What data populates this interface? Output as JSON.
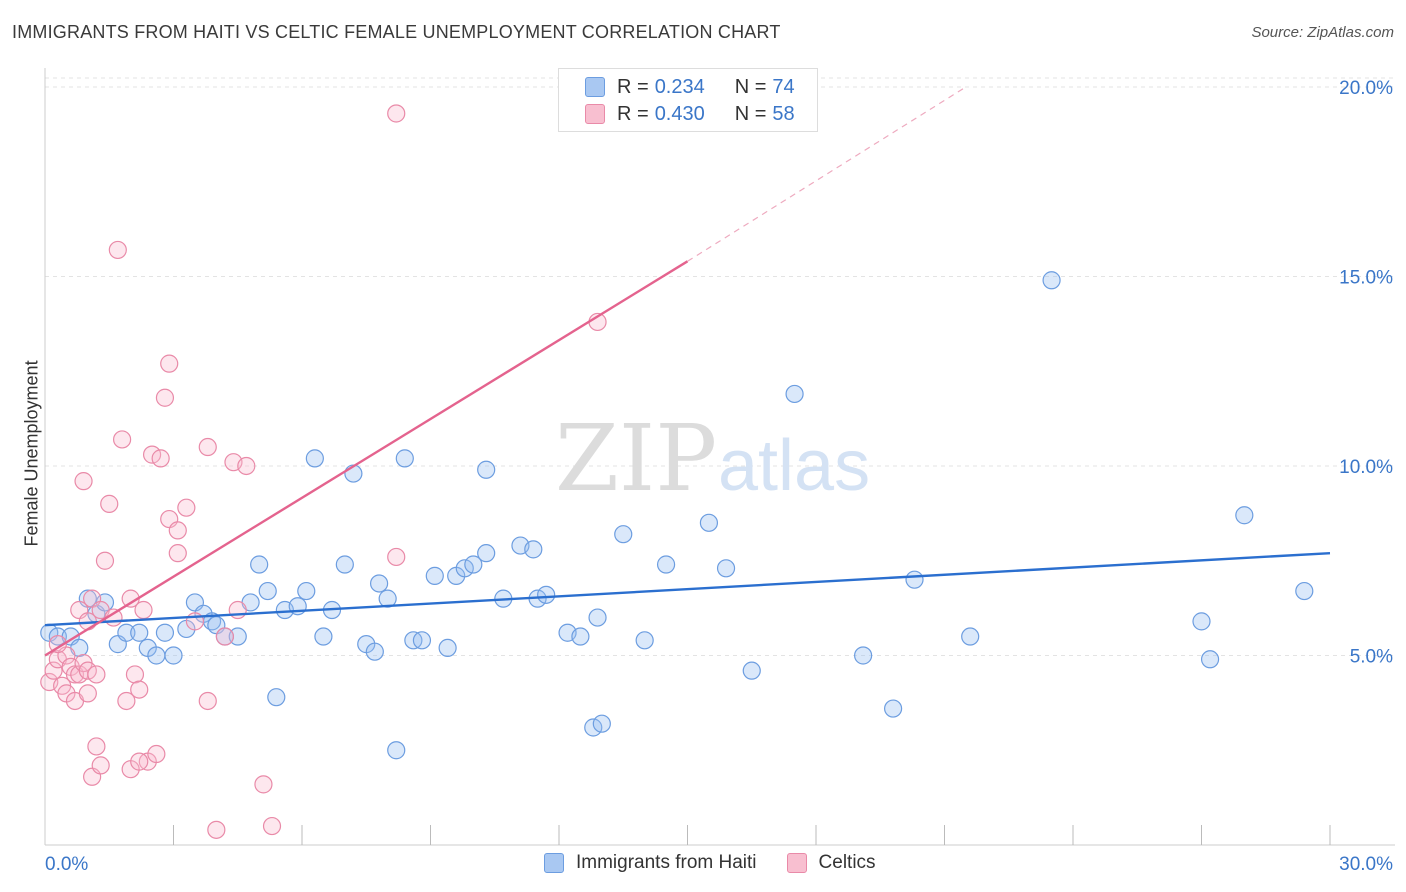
{
  "header": {
    "title": "IMMIGRANTS FROM HAITI VS CELTIC FEMALE UNEMPLOYMENT CORRELATION CHART",
    "source": "Source: ZipAtlas.com"
  },
  "legend_top": {
    "rows": [
      {
        "r_label": "R =",
        "r_value": "0.234",
        "n_label": "N =",
        "n_value": "74",
        "color": "#a9c8f2",
        "border": "#6c9de0"
      },
      {
        "r_label": "R =",
        "r_value": "0.430",
        "n_label": "N =",
        "n_value": "58",
        "color": "#f8bfd0",
        "border": "#e98aa8"
      }
    ]
  },
  "legend_bottom": {
    "items": [
      {
        "label": "Immigrants from Haiti",
        "color": "#a9c8f2",
        "border": "#6c9de0"
      },
      {
        "label": "Celtics",
        "color": "#f8bfd0",
        "border": "#e98aa8"
      }
    ]
  },
  "watermark": {
    "zip": "ZIP",
    "atlas": "atlas"
  },
  "chart_data": {
    "type": "scatter",
    "title": "IMMIGRANTS FROM HAITI VS CELTIC FEMALE UNEMPLOYMENT CORRELATION CHART",
    "xlabel": "",
    "ylabel": "Female Unemployment",
    "xlim": [
      0,
      30
    ],
    "ylim": [
      0,
      20.5
    ],
    "x_tick_labels": [
      {
        "value": 0,
        "label": "0.0%"
      },
      {
        "value": 30,
        "label": "30.0%"
      }
    ],
    "y_tick_labels": [
      {
        "value": 5,
        "label": "5.0%"
      },
      {
        "value": 10,
        "label": "10.0%"
      },
      {
        "value": 15,
        "label": "15.0%"
      },
      {
        "value": 20,
        "label": "20.0%"
      }
    ],
    "x_minor_ticks": [
      3,
      6,
      9,
      12,
      15,
      18,
      21,
      24,
      27,
      30
    ],
    "grid": true,
    "series": [
      {
        "name": "Immigrants from Haiti",
        "color": "#6c9de0",
        "fill": "rgba(150,190,240,0.35)",
        "trend": {
          "x1": 0,
          "y1": 5.8,
          "x2": 30,
          "y2": 7.7,
          "color": "#2b6fcf"
        },
        "points": [
          [
            0.1,
            5.6
          ],
          [
            0.3,
            5.5
          ],
          [
            0.6,
            5.5
          ],
          [
            0.8,
            5.2
          ],
          [
            1.0,
            6.5
          ],
          [
            1.2,
            6.1
          ],
          [
            1.4,
            6.4
          ],
          [
            1.7,
            5.3
          ],
          [
            1.9,
            5.6
          ],
          [
            2.2,
            5.6
          ],
          [
            2.4,
            5.2
          ],
          [
            2.6,
            5.0
          ],
          [
            2.8,
            5.6
          ],
          [
            3.0,
            5.0
          ],
          [
            3.3,
            5.7
          ],
          [
            3.5,
            6.4
          ],
          [
            3.7,
            6.1
          ],
          [
            3.9,
            5.9
          ],
          [
            4.0,
            5.8
          ],
          [
            4.2,
            5.5
          ],
          [
            4.5,
            5.5
          ],
          [
            4.8,
            6.4
          ],
          [
            5.0,
            7.4
          ],
          [
            5.2,
            6.7
          ],
          [
            5.4,
            3.9
          ],
          [
            5.6,
            6.2
          ],
          [
            5.9,
            6.3
          ],
          [
            6.1,
            6.7
          ],
          [
            6.3,
            10.2
          ],
          [
            6.5,
            5.5
          ],
          [
            6.7,
            6.2
          ],
          [
            7.0,
            7.4
          ],
          [
            7.2,
            9.8
          ],
          [
            7.5,
            5.3
          ],
          [
            7.7,
            5.1
          ],
          [
            7.8,
            6.9
          ],
          [
            8.0,
            6.5
          ],
          [
            8.2,
            2.5
          ],
          [
            8.4,
            10.2
          ],
          [
            8.6,
            5.4
          ],
          [
            8.8,
            5.4
          ],
          [
            9.1,
            7.1
          ],
          [
            9.4,
            5.2
          ],
          [
            9.6,
            7.1
          ],
          [
            9.8,
            7.3
          ],
          [
            10.0,
            7.4
          ],
          [
            10.3,
            7.7
          ],
          [
            10.3,
            9.9
          ],
          [
            10.7,
            6.5
          ],
          [
            11.1,
            7.9
          ],
          [
            11.4,
            7.8
          ],
          [
            11.5,
            6.5
          ],
          [
            11.7,
            6.6
          ],
          [
            12.2,
            5.6
          ],
          [
            12.5,
            5.5
          ],
          [
            12.8,
            3.1
          ],
          [
            13.0,
            3.2
          ],
          [
            12.9,
            6.0
          ],
          [
            13.5,
            8.2
          ],
          [
            14.0,
            5.4
          ],
          [
            14.5,
            7.4
          ],
          [
            15.5,
            8.5
          ],
          [
            15.9,
            7.3
          ],
          [
            16.5,
            4.6
          ],
          [
            17.5,
            11.9
          ],
          [
            19.1,
            5.0
          ],
          [
            19.8,
            3.6
          ],
          [
            20.3,
            7.0
          ],
          [
            21.6,
            5.5
          ],
          [
            23.5,
            14.9
          ],
          [
            27.0,
            5.9
          ],
          [
            27.2,
            4.9
          ],
          [
            28.0,
            8.7
          ],
          [
            29.4,
            6.7
          ]
        ]
      },
      {
        "name": "Celtics",
        "color": "#e98aa8",
        "fill": "rgba(248,185,205,0.35)",
        "trend": {
          "x1": 0,
          "y1": 5.0,
          "x2": 15.0,
          "y2": 15.4,
          "color": "#e4638e"
        },
        "trend_dashed": {
          "x1": 15.0,
          "y1": 15.4,
          "x2": 21.5,
          "y2": 20.0
        },
        "points": [
          [
            0.1,
            4.3
          ],
          [
            0.2,
            4.6
          ],
          [
            0.3,
            4.9
          ],
          [
            0.4,
            4.2
          ],
          [
            0.5,
            5.0
          ],
          [
            0.6,
            4.7
          ],
          [
            0.7,
            4.5
          ],
          [
            0.8,
            4.5
          ],
          [
            0.9,
            4.8
          ],
          [
            1.0,
            4.6
          ],
          [
            0.5,
            4.0
          ],
          [
            0.7,
            3.8
          ],
          [
            0.8,
            6.2
          ],
          [
            0.9,
            9.6
          ],
          [
            1.0,
            5.9
          ],
          [
            1.1,
            6.5
          ],
          [
            1.2,
            4.5
          ],
          [
            1.3,
            6.2
          ],
          [
            1.4,
            7.5
          ],
          [
            1.5,
            9.0
          ],
          [
            1.6,
            6.0
          ],
          [
            1.7,
            15.7
          ],
          [
            1.8,
            10.7
          ],
          [
            1.9,
            3.8
          ],
          [
            2.0,
            6.5
          ],
          [
            2.1,
            4.5
          ],
          [
            2.2,
            4.1
          ],
          [
            2.3,
            6.2
          ],
          [
            1.1,
            1.8
          ],
          [
            1.2,
            2.6
          ],
          [
            1.3,
            2.1
          ],
          [
            2.0,
            2.0
          ],
          [
            2.4,
            2.2
          ],
          [
            2.5,
            10.3
          ],
          [
            2.6,
            2.4
          ],
          [
            2.7,
            10.2
          ],
          [
            2.8,
            11.8
          ],
          [
            2.9,
            12.7
          ],
          [
            2.9,
            8.6
          ],
          [
            3.1,
            8.3
          ],
          [
            3.1,
            7.7
          ],
          [
            3.3,
            8.9
          ],
          [
            3.5,
            5.9
          ],
          [
            3.8,
            10.5
          ],
          [
            4.0,
            0.4
          ],
          [
            3.8,
            3.8
          ],
          [
            4.2,
            5.5
          ],
          [
            4.4,
            10.1
          ],
          [
            4.5,
            6.2
          ],
          [
            4.7,
            10.0
          ],
          [
            5.1,
            1.6
          ],
          [
            5.3,
            0.5
          ],
          [
            8.2,
            7.6
          ],
          [
            8.2,
            19.3
          ],
          [
            12.9,
            13.8
          ],
          [
            2.2,
            2.2
          ],
          [
            1.0,
            4.0
          ],
          [
            0.3,
            5.3
          ]
        ]
      }
    ]
  }
}
